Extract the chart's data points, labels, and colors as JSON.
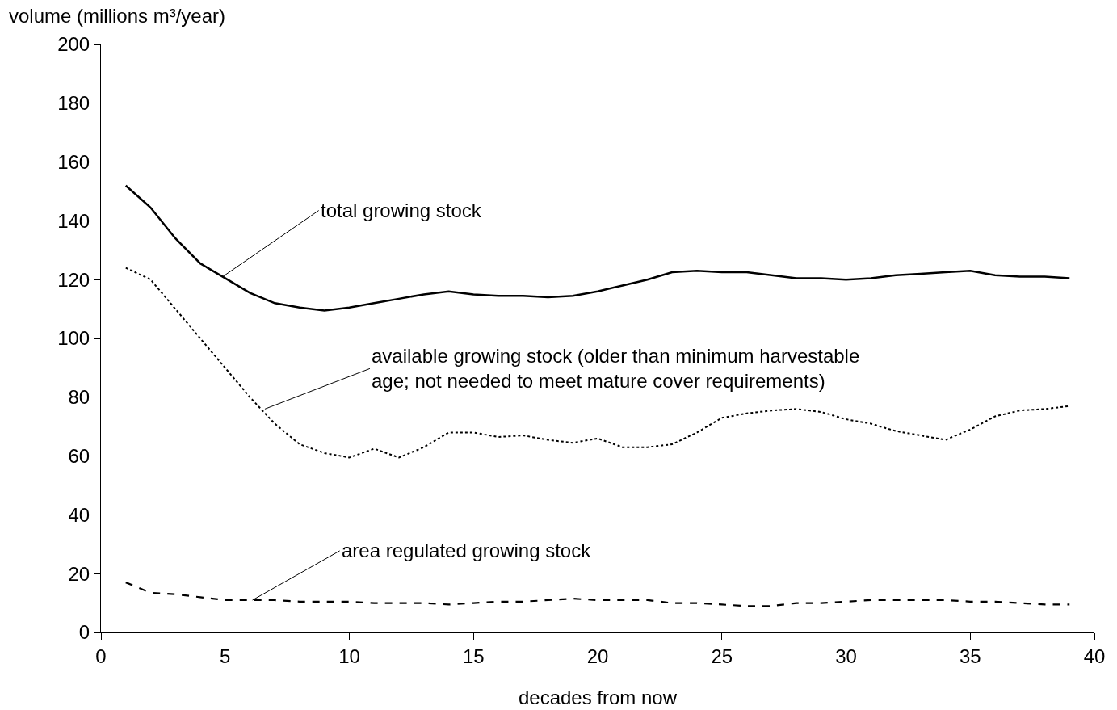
{
  "chart_data": {
    "type": "line",
    "xlabel": "decades from now",
    "ylabel": "volume (millions m³/year)",
    "x": [
      1,
      2,
      3,
      4,
      5,
      6,
      7,
      8,
      9,
      10,
      11,
      12,
      13,
      14,
      15,
      16,
      17,
      18,
      19,
      20,
      21,
      22,
      23,
      24,
      25,
      26,
      27,
      28,
      29,
      30,
      31,
      32,
      33,
      34,
      35,
      36,
      37,
      38,
      39
    ],
    "series": [
      {
        "color": "#000000",
        "line_style": "solid",
        "values": [
          152,
          144.5,
          134,
          125.5,
          120.5,
          115.5,
          112,
          110.5,
          109.5,
          110.5,
          112,
          113.5,
          115,
          116,
          115,
          114.5,
          114.5,
          114,
          114.5,
          116,
          118,
          120,
          122.5,
          123,
          122.5,
          122.5,
          121.5,
          120.5,
          120.5,
          120,
          120.5,
          121.5,
          122,
          122.5,
          123,
          121.5,
          121,
          121,
          120.5
        ]
      },
      {
        "color": "#000000",
        "line_style": "dotted",
        "values": [
          124,
          120,
          110,
          100,
          90,
          80,
          71,
          64,
          61,
          59.5,
          62.5,
          59.5,
          63,
          68,
          68,
          66.5,
          67,
          65.5,
          64.5,
          66,
          63,
          63,
          64,
          68,
          73,
          74.5,
          75.5,
          76,
          75,
          72.5,
          71,
          68.5,
          67,
          65.5,
          69,
          73.5,
          75.5,
          76,
          77
        ]
      },
      {
        "color": "#000000",
        "line_style": "dashed",
        "values": [
          17,
          13.5,
          13,
          12,
          11,
          11,
          11,
          10.5,
          10.5,
          10.5,
          10,
          10,
          10,
          9.5,
          10,
          10.5,
          10.5,
          11,
          11.5,
          11,
          11,
          11,
          10,
          10,
          9.5,
          9,
          9,
          10,
          10,
          10.5,
          11,
          11,
          11,
          11,
          10.5,
          10.5,
          10,
          9.5,
          9.5
        ]
      }
    ],
    "xlim": [
      0,
      40
    ],
    "xticks": [
      0,
      5,
      10,
      15,
      20,
      25,
      30,
      35,
      40
    ],
    "ylim": [
      0,
      200
    ],
    "yticks": [
      0,
      20,
      40,
      60,
      80,
      100,
      120,
      140,
      160,
      180,
      200
    ],
    "grid": false,
    "annotations": [
      {
        "text": "total growing stock",
        "x": 4.9,
        "y": 121
      },
      {
        "text": "available growing stock (older than minimum harvestable\nage; not needed to meet mature cover requirements)",
        "x": 6.6,
        "y": 76
      },
      {
        "text": "area regulated growing stock",
        "x": 6.1,
        "y": 11
      }
    ]
  }
}
